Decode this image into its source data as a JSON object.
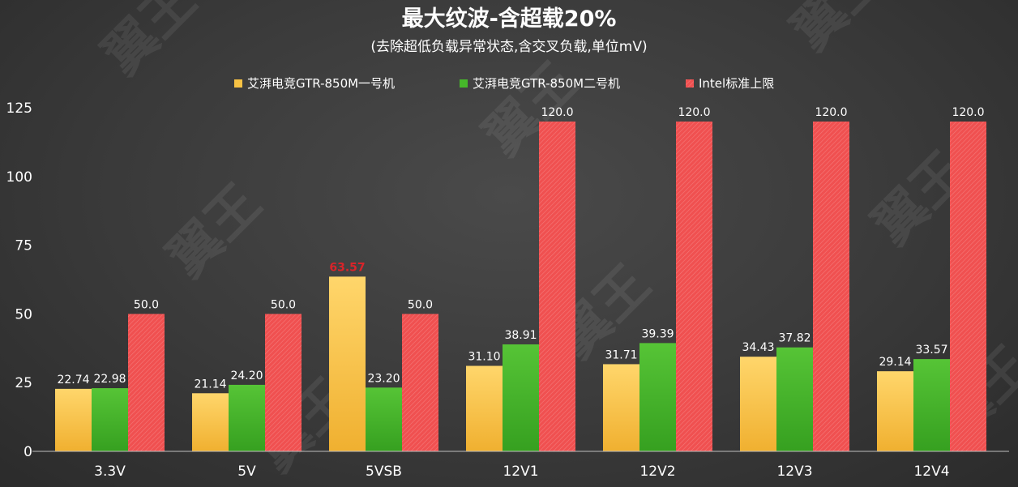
{
  "chart_data": {
    "type": "bar",
    "title": "最大纹波-含超载20%",
    "subtitle": "(去除超低负载异常状态,含交叉负载,单位mV)",
    "categories": [
      "3.3V",
      "5V",
      "5VSB",
      "12V1",
      "12V2",
      "12V3",
      "12V4"
    ],
    "series": [
      {
        "name": "艾湃电竞GTR-850M一号机",
        "color": "#f7c244",
        "values": [
          22.74,
          21.14,
          63.57,
          31.1,
          31.71,
          34.43,
          29.14
        ],
        "labels": [
          "22.74",
          "21.14",
          "63.57",
          "31.10",
          "31.71",
          "34.43",
          "29.14"
        ]
      },
      {
        "name": "艾湃电竞GTR-850M二号机",
        "color": "#46b82a",
        "values": [
          22.98,
          24.2,
          23.2,
          38.91,
          39.39,
          37.82,
          33.57
        ],
        "labels": [
          "22.98",
          "24.20",
          "23.20",
          "38.91",
          "39.39",
          "37.82",
          "33.57"
        ]
      },
      {
        "name": "Intel标准上限",
        "color": "#f05050",
        "values": [
          50.0,
          50.0,
          50.0,
          120.0,
          120.0,
          120.0,
          120.0
        ],
        "labels": [
          "50.0",
          "50.0",
          "50.0",
          "120.0",
          "120.0",
          "120.0",
          "120.0"
        ]
      }
    ],
    "yticks": [
      "0",
      "25",
      "50",
      "75",
      "100",
      "125"
    ],
    "ylim": [
      0,
      125
    ],
    "alert_color": "#d9242a",
    "legend_position": "top",
    "grid": false,
    "watermark": "翼王"
  }
}
